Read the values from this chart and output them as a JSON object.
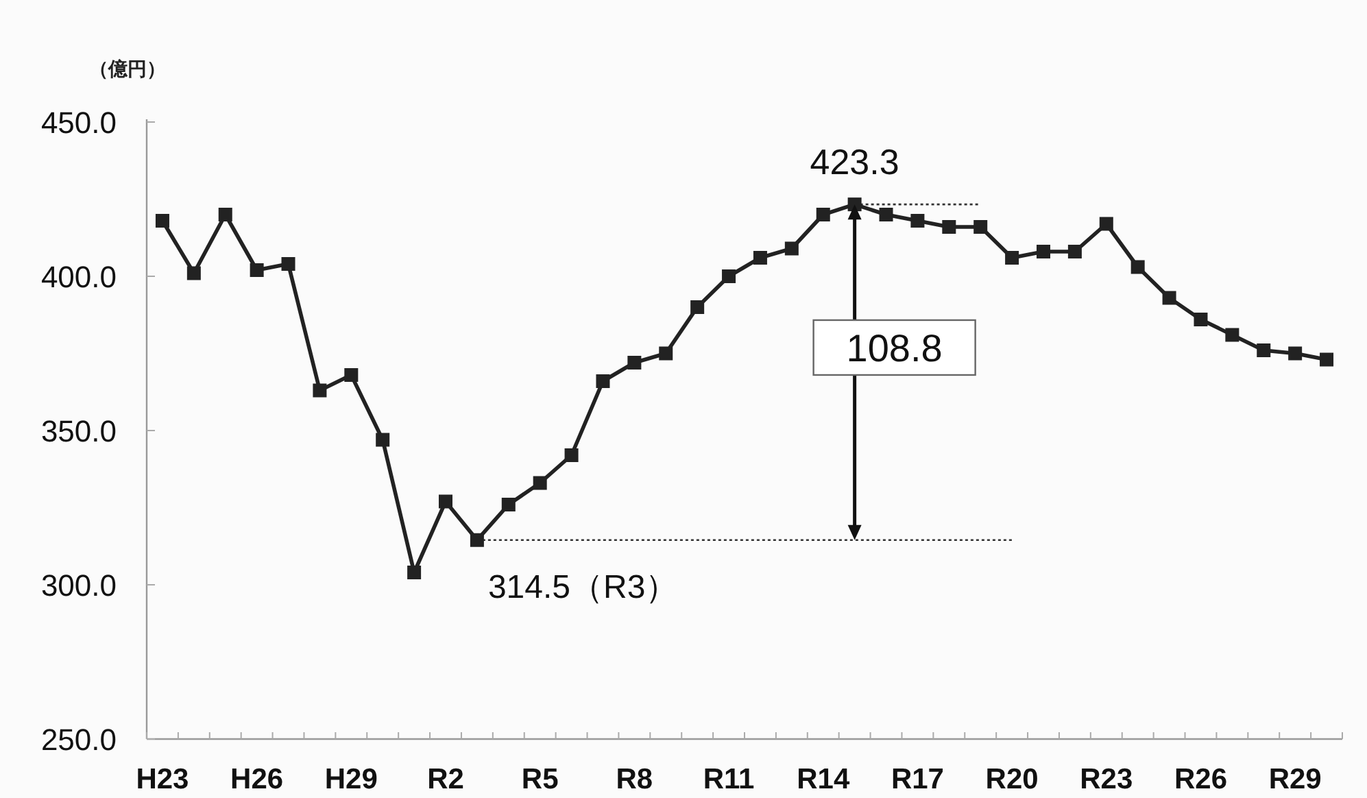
{
  "chart_data": {
    "type": "line",
    "ylabel": "（億円）",
    "categories": [
      "H23",
      null,
      null,
      "H26",
      null,
      null,
      "H29",
      null,
      null,
      "R2",
      null,
      null,
      "R5",
      null,
      null,
      "R8",
      null,
      null,
      "R11",
      null,
      null,
      "R14",
      null,
      null,
      "R17",
      null,
      null,
      "R20",
      null,
      null,
      "R23",
      null,
      null,
      "R26",
      null,
      null,
      "R29",
      null
    ],
    "values": [
      418,
      401,
      420,
      402,
      404,
      363,
      368,
      347,
      304,
      327,
      314.5,
      326,
      333,
      342,
      366,
      372,
      375,
      390,
      400,
      406,
      409,
      420,
      423.3,
      420,
      418,
      416,
      416,
      406,
      408,
      408,
      417,
      403,
      393,
      386,
      381,
      376,
      375,
      373
    ],
    "color": "#222222",
    "marker": "square",
    "line_style": "solid",
    "ylim": [
      250,
      450
    ],
    "yticks": [
      {
        "value": 250,
        "label": "250.0"
      },
      {
        "value": 300,
        "label": "300.0"
      },
      {
        "value": 350,
        "label": "350.0"
      },
      {
        "value": 400,
        "label": "400.0"
      },
      {
        "value": 450,
        "label": "450.0"
      }
    ],
    "ref_lines": [
      {
        "axis": "y",
        "value": 423.3,
        "line_style": "dotted",
        "color": "#333333"
      },
      {
        "axis": "y",
        "value": 314.5,
        "line_style": "dotted",
        "color": "#333333"
      }
    ],
    "annotations": [
      {
        "text": "423.3",
        "y": 423.3
      },
      {
        "text": "314.5（R3）",
        "y": 314.5
      },
      "108.8"
    ]
  }
}
